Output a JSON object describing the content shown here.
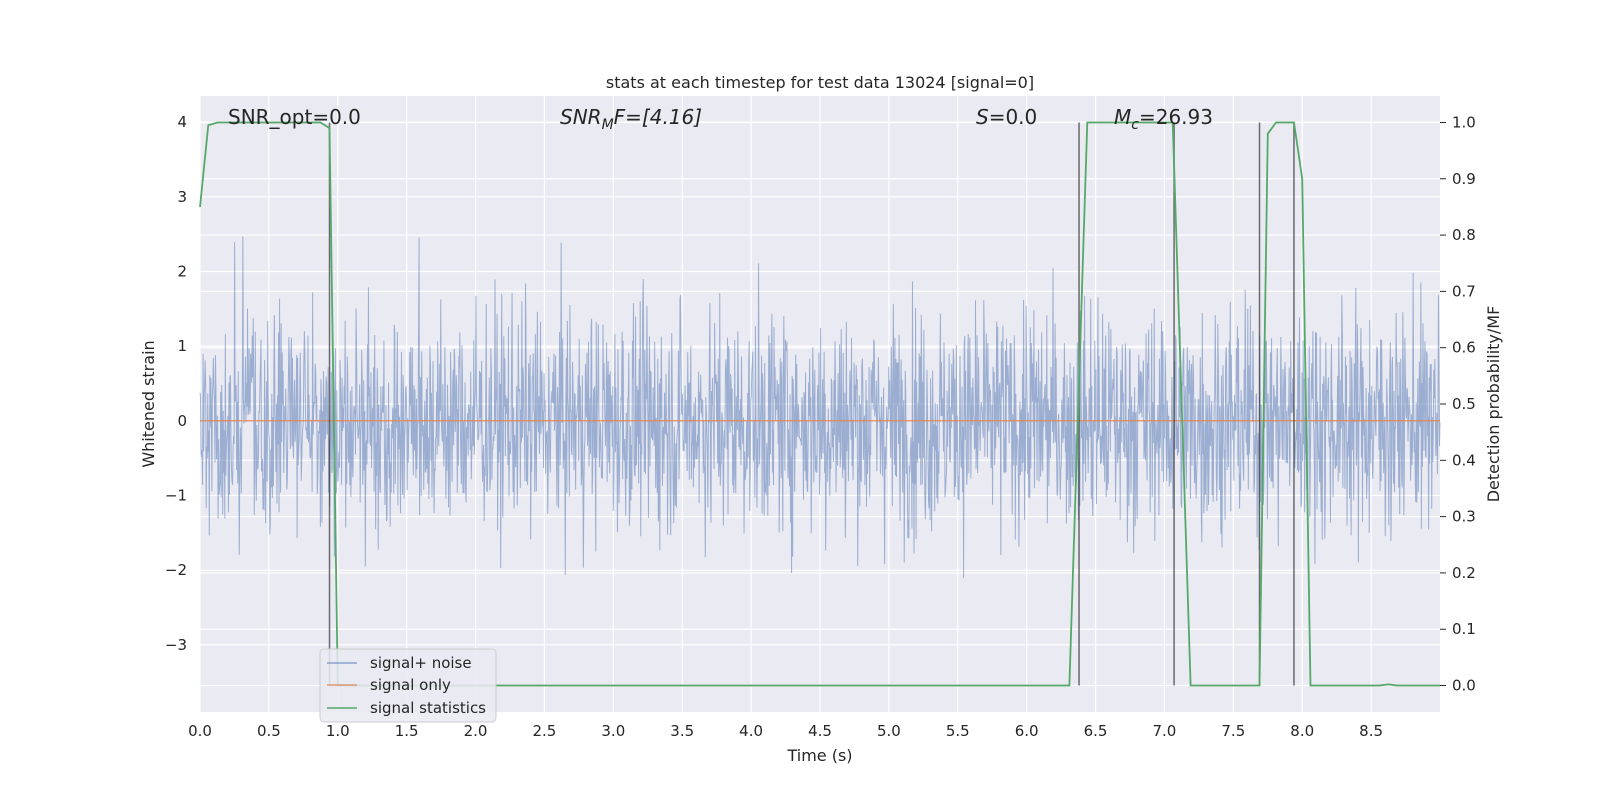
{
  "chart_data": {
    "type": "line",
    "title": "stats at each timestep for test data 13024 [signal=0]",
    "xlabel": "Time (s)",
    "ylabel": "Whitened strain",
    "y2label": "Detection probability/MF",
    "xlim": [
      0.0,
      9.0
    ],
    "ylim": [
      -3.9,
      4.35
    ],
    "y2lim": [
      -0.047,
      1.047
    ],
    "xticks": [
      "0.0",
      "0.5",
      "1.0",
      "1.5",
      "2.0",
      "2.5",
      "3.0",
      "3.5",
      "4.0",
      "4.5",
      "5.0",
      "5.5",
      "6.0",
      "6.5",
      "7.0",
      "7.5",
      "8.0",
      "8.5"
    ],
    "xtick_values": [
      0.0,
      0.5,
      1.0,
      1.5,
      2.0,
      2.5,
      3.0,
      3.5,
      4.0,
      4.5,
      5.0,
      5.5,
      6.0,
      6.5,
      7.0,
      7.5,
      8.0,
      8.5
    ],
    "yticks": [
      "4",
      "3",
      "2",
      "1",
      "0",
      "−1",
      "−2",
      "−3"
    ],
    "ytick_values": [
      4,
      3,
      2,
      1,
      0,
      -1,
      -2,
      -3
    ],
    "y2ticks": [
      "1.0",
      "0.9",
      "0.8",
      "0.7",
      "0.6",
      "0.5",
      "0.4",
      "0.3",
      "0.2",
      "0.1",
      "0.0"
    ],
    "y2tick_values": [
      1.0,
      0.9,
      0.8,
      0.7,
      0.6,
      0.5,
      0.4,
      0.3,
      0.2,
      0.1,
      0.0
    ],
    "grid": true,
    "legend_position": "lower-left",
    "annotations": {
      "snr_opt": "SNR_opt=0.0",
      "snr_mf_main": "SNR",
      "snr_mf_sub": "M",
      "snr_mf_rest": "F=[4.16]",
      "s_main": "S",
      "s_rest": "=0.0",
      "mc_main": "M",
      "mc_sub": "c",
      "mc_rest": "=26.93"
    },
    "series": [
      {
        "name": "signal+ noise",
        "color": "#4c72b0",
        "axis": "left",
        "kind": "noise",
        "amplitude_range": [
          -3.6,
          3.6
        ],
        "typical_range": [
          -1.3,
          1.3
        ]
      },
      {
        "name": "signal only",
        "color": "#dd8452",
        "axis": "left",
        "x": [
          0.0,
          9.0
        ],
        "y": [
          0.0,
          0.0
        ]
      },
      {
        "name": "signal statistics",
        "color": "#55a868",
        "axis": "right",
        "x": [
          0.0,
          0.06,
          0.125,
          0.875,
          0.94,
          1.0,
          6.31,
          6.44,
          6.5,
          6.625,
          6.75,
          7.06,
          7.19,
          7.69,
          7.75,
          7.81,
          7.94,
          8.0,
          8.06,
          8.56,
          8.625,
          8.69,
          9.0
        ],
        "y": [
          0.85,
          0.995,
          1.0,
          1.0,
          0.99,
          0.0,
          0.0,
          1.0,
          1.0,
          1.0,
          1.0,
          1.0,
          0.0,
          0.0,
          0.98,
          1.0,
          1.0,
          0.9,
          0.0,
          0.0,
          0.002,
          0.0,
          0.0
        ]
      }
    ],
    "vertical_lines": [
      0.94,
      6.38,
      7.07,
      7.69,
      7.94
    ]
  }
}
